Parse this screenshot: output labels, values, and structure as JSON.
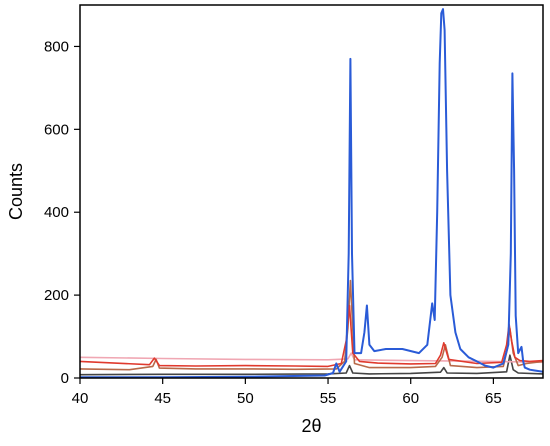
{
  "chart_data": {
    "type": "line",
    "title": "",
    "xlabel": "2θ",
    "ylabel": "Counts",
    "xlim": [
      40,
      68
    ],
    "ylim": [
      0,
      900
    ],
    "xticks": [
      40,
      45,
      50,
      55,
      60,
      65
    ],
    "yticks": [
      0,
      200,
      400,
      600,
      800
    ],
    "grid": false,
    "legend": "none",
    "series": [
      {
        "color": "#2a5bd7",
        "x": [
          40,
          45,
          50,
          54.8,
          55.3,
          55.5,
          55.7,
          56.1,
          56.25,
          56.35,
          56.45,
          56.6,
          57.0,
          57.2,
          57.35,
          57.5,
          57.8,
          58.5,
          59.5,
          60.5,
          61.0,
          61.3,
          61.45,
          61.6,
          61.75,
          61.85,
          61.95,
          62.05,
          62.2,
          62.4,
          62.7,
          63.0,
          63.5,
          64.0,
          64.5,
          65.0,
          65.6,
          65.9,
          66.05,
          66.15,
          66.25,
          66.35,
          66.5,
          66.7,
          66.8,
          66.9,
          67.2,
          67.5,
          68
        ],
        "y": [
          2,
          2,
          3,
          6,
          12,
          35,
          15,
          40,
          300,
          770,
          300,
          60,
          60,
          110,
          175,
          80,
          65,
          70,
          70,
          60,
          80,
          180,
          140,
          400,
          760,
          880,
          890,
          840,
          500,
          200,
          110,
          70,
          50,
          40,
          30,
          25,
          35,
          80,
          300,
          735,
          500,
          150,
          60,
          75,
          40,
          25,
          20,
          18,
          15
        ]
      },
      {
        "color": "#e03a2e",
        "x": [
          40,
          44.2,
          44.5,
          44.8,
          47,
          50,
          53,
          55.0,
          55.8,
          56.1,
          56.3,
          56.5,
          56.9,
          58,
          60,
          61.5,
          61.8,
          62.0,
          62.3,
          64,
          65.5,
          65.8,
          65.95,
          66.1,
          66.3,
          66.6,
          67.2,
          68
        ],
        "y": [
          40,
          32,
          48,
          30,
          29,
          30,
          29,
          28,
          35,
          90,
          175,
          60,
          40,
          36,
          34,
          35,
          55,
          85,
          45,
          35,
          38,
          80,
          130,
          90,
          50,
          42,
          40,
          42
        ]
      },
      {
        "color": "#b86a4a",
        "x": [
          40,
          43,
          44.4,
          44.6,
          44.8,
          47,
          50,
          53,
          55.5,
          56.0,
          56.2,
          56.35,
          56.6,
          57.5,
          60,
          61.5,
          61.9,
          62.1,
          62.4,
          64,
          65.6,
          65.85,
          66.0,
          66.2,
          66.5,
          67,
          68
        ],
        "y": [
          22,
          20,
          28,
          45,
          24,
          22,
          22,
          21,
          22,
          40,
          120,
          235,
          35,
          25,
          25,
          28,
          50,
          80,
          30,
          25,
          28,
          70,
          120,
          60,
          30,
          35,
          40
        ]
      },
      {
        "color": "#f0a7b3",
        "x": [
          40,
          45,
          50,
          55,
          56.2,
          56.4,
          56.6,
          60,
          65,
          68
        ],
        "y": [
          50,
          47,
          45,
          44,
          46,
          60,
          44,
          42,
          40,
          38
        ]
      },
      {
        "color": "#444444",
        "x": [
          40,
          45,
          50,
          55,
          56.1,
          56.3,
          56.5,
          57.5,
          60,
          61.8,
          62.0,
          62.2,
          64,
          65.8,
          66.0,
          66.2,
          66.5,
          68
        ],
        "y": [
          8,
          9,
          9,
          10,
          12,
          30,
          12,
          10,
          11,
          14,
          25,
          12,
          11,
          15,
          55,
          20,
          12,
          10
        ]
      }
    ]
  }
}
